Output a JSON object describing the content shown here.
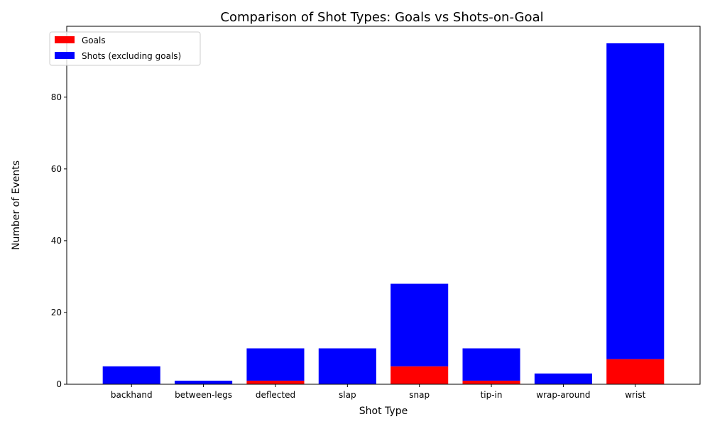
{
  "chart_data": {
    "type": "bar",
    "stacked": true,
    "title": "Comparison of Shot Types: Goals vs Shots-on-Goal",
    "xlabel": "Shot Type",
    "ylabel": "Number of Events",
    "categories": [
      "backhand",
      "between-legs",
      "deflected",
      "slap",
      "snap",
      "tip-in",
      "wrap-around",
      "wrist"
    ],
    "series": [
      {
        "name": "Goals",
        "color": "#ff0000",
        "values": [
          0,
          0,
          1,
          0,
          5,
          1,
          0,
          7
        ]
      },
      {
        "name": "Shots (excluding goals)",
        "color": "#0000ff",
        "values": [
          5,
          1,
          9,
          10,
          23,
          9,
          3,
          88
        ]
      }
    ],
    "ylim": [
      0,
      99.75
    ],
    "yticks": [
      0,
      20,
      40,
      60,
      80
    ],
    "grid": false,
    "legend_position": "top-left"
  }
}
